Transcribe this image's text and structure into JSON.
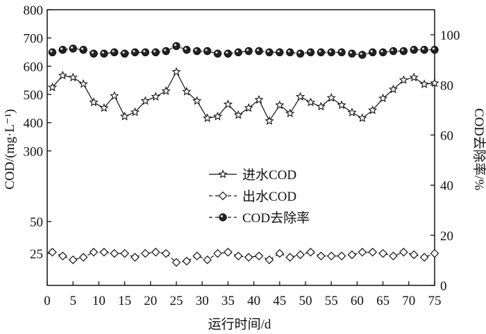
{
  "chart_data": {
    "type": "line",
    "xlabel": "运行时间/d",
    "ylabel_left": "COD/(mg·L⁻¹)",
    "ylabel_right": "COD去除率/%",
    "x_ticks": [
      0,
      5,
      10,
      15,
      20,
      25,
      30,
      35,
      40,
      45,
      50,
      55,
      60,
      65,
      70,
      75
    ],
    "xlim": [
      0,
      75
    ],
    "left_axis_note": "broken scale: 0–50 lower band, 50–800 upper band",
    "left_ticks": [
      25,
      50,
      300,
      400,
      500,
      600,
      700,
      800
    ],
    "left_tick_labels": [
      "25",
      "50",
      "300",
      "400",
      "500",
      "600",
      "700",
      "800"
    ],
    "right_ticks": [
      0,
      20,
      40,
      60,
      80,
      100
    ],
    "right_tick_labels": [
      "0",
      "20",
      "40",
      "60",
      "80",
      "100"
    ],
    "ylim_right": [
      0,
      110
    ],
    "x": [
      1,
      3,
      5,
      7,
      9,
      11,
      13,
      15,
      17,
      19,
      21,
      23,
      25,
      27,
      29,
      31,
      33,
      35,
      37,
      39,
      41,
      43,
      45,
      47,
      49,
      51,
      53,
      55,
      57,
      59,
      61,
      63,
      65,
      67,
      69,
      71,
      73,
      75
    ],
    "series": [
      {
        "name": "进水COD",
        "axis": "left",
        "marker": "star",
        "values": [
          525,
          567,
          560,
          537,
          472,
          452,
          495,
          422,
          437,
          477,
          492,
          512,
          580,
          510,
          477,
          416,
          422,
          465,
          427,
          452,
          481,
          406,
          462,
          433,
          492,
          472,
          457,
          488,
          462,
          436,
          416,
          444,
          486,
          518,
          551,
          560,
          536,
          540
        ]
      },
      {
        "name": "出水COD",
        "axis": "left",
        "marker": "diamond",
        "values": [
          26,
          23,
          20,
          22,
          26,
          26,
          25,
          25,
          22,
          25,
          26,
          25,
          18,
          19,
          23,
          20,
          25,
          26,
          23,
          22,
          23,
          20,
          25,
          22,
          24,
          26,
          23,
          23,
          23,
          24,
          26,
          26,
          25,
          23,
          26,
          24,
          22,
          25
        ]
      },
      {
        "name": "COD去除率",
        "axis": "right",
        "marker": "circle",
        "values": [
          93,
          94,
          94.5,
          94,
          92.5,
          92.5,
          93,
          92.5,
          93,
          93,
          93,
          93.5,
          95.5,
          94,
          93.5,
          93.5,
          92.5,
          92.5,
          93,
          93.5,
          93.5,
          93,
          93,
          93,
          92.5,
          93,
          93,
          93,
          93,
          92.5,
          92,
          93,
          93,
          93.5,
          93.5,
          94,
          94,
          94
        ]
      }
    ],
    "legend_position": "center"
  }
}
